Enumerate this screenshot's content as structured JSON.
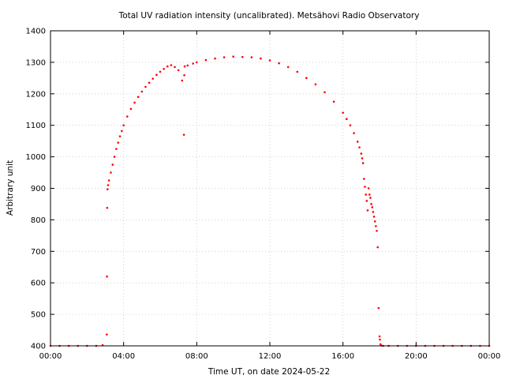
{
  "chart_data": {
    "type": "scatter",
    "title": "Total UV radiation intensity (uncalibrated). Metsähovi Radio Observatory",
    "xlabel": "Time UT, on date 2024-05-22",
    "ylabel": "Arbitrary unit",
    "xlim": [
      0,
      24
    ],
    "ylim": [
      400,
      1400
    ],
    "x_ticks": [
      {
        "value": 0,
        "label": "00:00"
      },
      {
        "value": 4,
        "label": "04:00"
      },
      {
        "value": 8,
        "label": "08:00"
      },
      {
        "value": 12,
        "label": "12:00"
      },
      {
        "value": 16,
        "label": "16:00"
      },
      {
        "value": 20,
        "label": "20:00"
      },
      {
        "value": 24,
        "label": "00:00"
      }
    ],
    "y_ticks": [
      {
        "value": 400,
        "label": "400"
      },
      {
        "value": 500,
        "label": "500"
      },
      {
        "value": 600,
        "label": "600"
      },
      {
        "value": 700,
        "label": "700"
      },
      {
        "value": 800,
        "label": "800"
      },
      {
        "value": 900,
        "label": "900"
      },
      {
        "value": 1000,
        "label": "1000"
      },
      {
        "value": 1100,
        "label": "1100"
      },
      {
        "value": 1200,
        "label": "1200"
      },
      {
        "value": 1300,
        "label": "1300"
      },
      {
        "value": 1400,
        "label": "1400"
      }
    ],
    "grid": true,
    "marker_color": "#ff0000",
    "series": [
      {
        "x": [
          0.0,
          0.5,
          1.0,
          1.5,
          2.0,
          2.5,
          2.85,
          3.08,
          3.09,
          3.1,
          3.12,
          3.15,
          3.2,
          3.3,
          3.4,
          3.5,
          3.6,
          3.7,
          3.8,
          3.9,
          4.0,
          4.2,
          4.4,
          4.6,
          4.8,
          5.0,
          5.2,
          5.4,
          5.6,
          5.8,
          6.0,
          6.2,
          6.4,
          6.6,
          6.8,
          7.0,
          7.2,
          7.3,
          7.32,
          7.34,
          7.5,
          7.8,
          8.0,
          8.5,
          9.0,
          9.5,
          10.0,
          10.5,
          11.0,
          11.5,
          12.0,
          12.5,
          13.0,
          13.5,
          14.0,
          14.5,
          15.0,
          15.5,
          16.0,
          16.2,
          16.4,
          16.6,
          16.8,
          16.9,
          17.0,
          17.05,
          17.1,
          17.15,
          17.2,
          17.25,
          17.3,
          17.35,
          17.4,
          17.45,
          17.5,
          17.55,
          17.6,
          17.65,
          17.7,
          17.75,
          17.8,
          17.85,
          17.9,
          17.95,
          18.0,
          18.02,
          18.05,
          18.1,
          18.2,
          18.5,
          19.0,
          19.5,
          20.0,
          20.5,
          21.0,
          21.5,
          22.0,
          22.5,
          23.0,
          23.5,
          24.0
        ],
        "y": [
          400,
          400,
          400,
          400,
          400,
          400,
          402,
          436,
          620,
          838,
          897,
          910,
          925,
          950,
          975,
          1000,
          1025,
          1045,
          1065,
          1082,
          1100,
          1128,
          1152,
          1172,
          1190,
          1207,
          1222,
          1235,
          1248,
          1260,
          1270,
          1279,
          1287,
          1291,
          1285,
          1275,
          1242,
          1070,
          1259,
          1287,
          1290,
          1296,
          1300,
          1307,
          1312,
          1316,
          1318,
          1317,
          1316,
          1312,
          1306,
          1297,
          1285,
          1270,
          1250,
          1230,
          1205,
          1175,
          1140,
          1120,
          1100,
          1075,
          1048,
          1030,
          1010,
          995,
          980,
          930,
          905,
          880,
          860,
          830,
          900,
          880,
          870,
          850,
          840,
          825,
          810,
          795,
          780,
          765,
          713,
          520,
          430,
          420,
          405,
          401,
          400,
          400,
          400,
          400,
          400,
          400,
          400,
          400,
          400,
          400,
          400,
          400,
          400
        ]
      }
    ]
  }
}
